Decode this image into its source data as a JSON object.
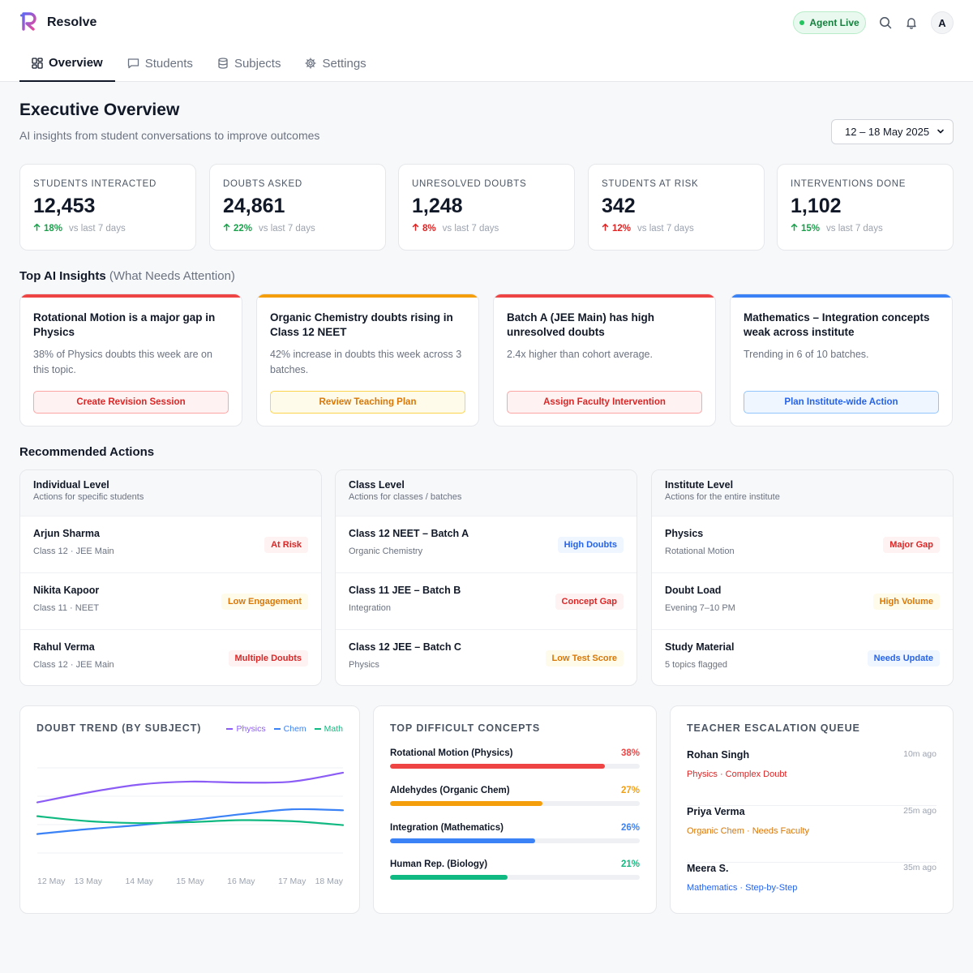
{
  "app": {
    "name": "Resolve"
  },
  "header": {
    "status_label": "Agent Live",
    "avatar_initial": "A"
  },
  "tabs": [
    {
      "label": "Overview",
      "icon": "grid-icon",
      "active": true
    },
    {
      "label": "Students",
      "icon": "message-icon",
      "active": false
    },
    {
      "label": "Subjects",
      "icon": "database-icon",
      "active": false
    },
    {
      "label": "Settings",
      "icon": "gear-icon",
      "active": false
    }
  ],
  "page": {
    "title": "Executive Overview",
    "subtitle": "AI insights from student conversations to improve outcomes",
    "date_range": "12 – 18 May 2025"
  },
  "kpis": [
    {
      "label": "STUDENTS INTERACTED",
      "value": "12,453",
      "delta": "18%",
      "trend": "up",
      "sentiment": "good",
      "vs": "vs last 7 days"
    },
    {
      "label": "DOUBTS ASKED",
      "value": "24,861",
      "delta": "22%",
      "trend": "up",
      "sentiment": "good",
      "vs": "vs last 7 days"
    },
    {
      "label": "UNRESOLVED DOUBTS",
      "value": "1,248",
      "delta": "8%",
      "trend": "up",
      "sentiment": "bad",
      "vs": "vs last 7 days"
    },
    {
      "label": "STUDENTS AT RISK",
      "value": "342",
      "delta": "12%",
      "trend": "up",
      "sentiment": "bad",
      "vs": "vs last 7 days"
    },
    {
      "label": "INTERVENTIONS DONE",
      "value": "1,102",
      "delta": "15%",
      "trend": "up",
      "sentiment": "good",
      "vs": "vs last 7 days"
    }
  ],
  "insights_section": {
    "title": "Top AI Insights",
    "subtitle": "(What Needs Attention)"
  },
  "insights": [
    {
      "title": "Rotational Motion is a major gap in Physics",
      "body": "38% of Physics doubts this week are on this topic.",
      "action": "Create Revision Session",
      "accent": "#ef4444",
      "btn_bg": "#fef2f2",
      "btn_border": "#fca5a5",
      "btn_text": "#dc2626"
    },
    {
      "title": "Organic Chemistry doubts rising in Class 12 NEET",
      "body": "42% increase in doubts this week across 3 batches.",
      "action": "Review Teaching Plan",
      "accent": "#f59e0b",
      "btn_bg": "#fffbeb",
      "btn_border": "#fcd34d",
      "btn_text": "#d97706"
    },
    {
      "title": "Batch A (JEE Main) has high unresolved doubts",
      "body": "2.4x higher than cohort average.",
      "action": "Assign Faculty Intervention",
      "accent": "#ef4444",
      "btn_bg": "#fef2f2",
      "btn_border": "#fca5a5",
      "btn_text": "#dc2626"
    },
    {
      "title": "Mathematics – Integration concepts weak across institute",
      "body": "Trending in 6 of 10 batches.",
      "action": "Plan Institute-wide Action",
      "accent": "#3b82f6",
      "btn_bg": "#eff6ff",
      "btn_border": "#93c5fd",
      "btn_text": "#2563eb"
    }
  ],
  "actions_section": {
    "title": "Recommended Actions"
  },
  "action_groups": [
    {
      "title": "Individual Level",
      "subtitle": "Actions for specific students",
      "rows": [
        {
          "title": "Arjun Sharma",
          "sub": "Class 12 · JEE Main",
          "badge": "At Risk",
          "tone": "red"
        },
        {
          "title": "Nikita Kapoor",
          "sub": "Class 11 · NEET",
          "badge": "Low Engagement",
          "tone": "amber"
        },
        {
          "title": "Rahul Verma",
          "sub": "Class 12 · JEE Main",
          "badge": "Multiple Doubts",
          "tone": "red"
        }
      ]
    },
    {
      "title": "Class Level",
      "subtitle": "Actions for classes / batches",
      "rows": [
        {
          "title": "Class 12 NEET – Batch A",
          "sub": "Organic Chemistry",
          "badge": "High Doubts",
          "tone": "blue"
        },
        {
          "title": "Class 11 JEE – Batch B",
          "sub": "Integration",
          "badge": "Concept Gap",
          "tone": "red"
        },
        {
          "title": "Class 12 JEE – Batch C",
          "sub": "Physics",
          "badge": "Low Test Score",
          "tone": "amber"
        }
      ]
    },
    {
      "title": "Institute Level",
      "subtitle": "Actions for the entire institute",
      "rows": [
        {
          "title": "Physics",
          "sub": "Rotational Motion",
          "badge": "Major Gap",
          "tone": "red"
        },
        {
          "title": "Doubt Load",
          "sub": "Evening 7–10 PM",
          "badge": "High Volume",
          "tone": "amber"
        },
        {
          "title": "Study Material",
          "sub": "5 topics flagged",
          "badge": "Needs Update",
          "tone": "blue"
        }
      ]
    }
  ],
  "trend_panel": {
    "title": "DOUBT TREND (BY SUBJECT)"
  },
  "chart_data": {
    "type": "line",
    "title": "DOUBT TREND (BY SUBJECT)",
    "x": [
      "12 May",
      "13 May",
      "14 May",
      "15 May",
      "16 May",
      "17 May",
      "18 May"
    ],
    "series": [
      {
        "name": "Physics",
        "color": "#8b5cf6",
        "values": [
          52,
          62,
          70,
          73,
          72,
          73,
          82
        ]
      },
      {
        "name": "Chem",
        "color": "#3b82f6",
        "values": [
          20,
          25,
          29,
          34,
          40,
          45,
          44
        ]
      },
      {
        "name": "Math",
        "color": "#10b981",
        "values": [
          38,
          33,
          31,
          32,
          34,
          33,
          29
        ]
      }
    ],
    "ylim": [
      0,
      100
    ],
    "grid": true,
    "legend": "top-right"
  },
  "concepts_panel": {
    "title": "TOP DIFFICULT CONCEPTS",
    "items": [
      {
        "label": "Rotational Motion (Physics)",
        "pct_label": "38%",
        "fraction": 0.86,
        "color": "#ef4444"
      },
      {
        "label": "Aldehydes (Organic Chem)",
        "pct_label": "27%",
        "fraction": 0.61,
        "color": "#f59e0b"
      },
      {
        "label": "Integration (Mathematics)",
        "pct_label": "26%",
        "fraction": 0.58,
        "color": "#3b82f6"
      },
      {
        "label": "Human Rep. (Biology)",
        "pct_label": "21%",
        "fraction": 0.47,
        "color": "#10b981"
      }
    ]
  },
  "escalation_panel": {
    "title": "TEACHER ESCALATION QUEUE",
    "items": [
      {
        "name": "Rohan Singh",
        "time": "10m ago",
        "tags": "Physics · Complex Doubt",
        "color": "#dc2626"
      },
      {
        "name": "Priya Verma",
        "time": "25m ago",
        "tags": "Organic Chem · Needs Faculty",
        "color": "#d97706"
      },
      {
        "name": "Meera S.",
        "time": "35m ago",
        "tags": "Mathematics · Step-by-Step",
        "color": "#2563eb"
      }
    ]
  },
  "colors": {
    "positive": "#16a34a",
    "negative": "#dc2626",
    "brand_gradient": [
      "#6366f1",
      "#ec4899"
    ]
  }
}
